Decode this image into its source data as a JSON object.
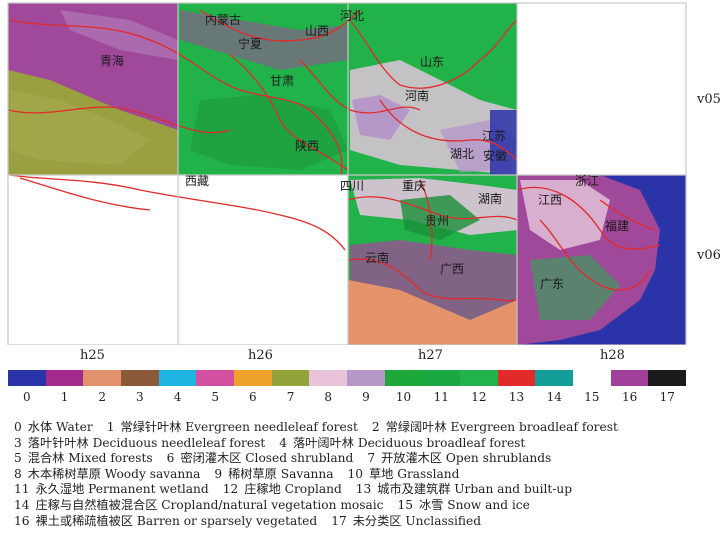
{
  "tiles": {
    "columns": [
      "h25",
      "h26",
      "h27",
      "h28"
    ],
    "rows": [
      "v05",
      "v06"
    ]
  },
  "provinces": [
    "内蒙古",
    "宁夏",
    "山西",
    "河北",
    "山东",
    "青海",
    "甘肃",
    "陕西",
    "河南",
    "江苏",
    "安徽",
    "西藏",
    "四川",
    "重庆",
    "湖北",
    "浙江",
    "湖南",
    "江西",
    "贵州",
    "福建",
    "云南",
    "广西",
    "广东"
  ],
  "classes": [
    {
      "id": "0",
      "zh": "水体",
      "en": "Water",
      "color": "#2b33a8"
    },
    {
      "id": "1",
      "zh": "常绿针叶林",
      "en": "Evergreen needleleaf forest",
      "color": "#a22a8c"
    },
    {
      "id": "2",
      "zh": "常绿阔叶林",
      "en": "Evergreen broadleaf forest",
      "color": "#e2936e"
    },
    {
      "id": "3",
      "zh": "落叶针叶林",
      "en": "Deciduous needleleaf forest",
      "color": "#8c5a3a"
    },
    {
      "id": "4",
      "zh": "落叶阔叶林",
      "en": "Deciduous broadleaf forest",
      "color": "#1fb5e3"
    },
    {
      "id": "5",
      "zh": "混合林",
      "en": "Mixed forests",
      "color": "#d34fa0"
    },
    {
      "id": "6",
      "zh": "密闭灌木区",
      "en": "Closed shrubland",
      "color": "#eda02a"
    },
    {
      "id": "7",
      "zh": "开放灌木区",
      "en": "Open shrublands",
      "color": "#94a23c"
    },
    {
      "id": "8",
      "zh": "木本稀树草原",
      "en": "Woody savanna",
      "color": "#e8c3da"
    },
    {
      "id": "9",
      "zh": "稀树草原",
      "en": "Savanna",
      "color": "#b597c8"
    },
    {
      "id": "10",
      "zh": "草地",
      "en": "Grassland",
      "color": "#1fa83a"
    },
    {
      "id": "11",
      "zh": "永久湿地",
      "en": "Permanent wetland",
      "color": "#1aa844"
    },
    {
      "id": "12",
      "zh": "庄稼地",
      "en": "Cropland",
      "color": "#22b24a"
    },
    {
      "id": "13",
      "zh": "城市及建筑群",
      "en": "Urban and built-up",
      "color": "#e22a2a"
    },
    {
      "id": "14",
      "zh": "庄稼与自然植被混合区",
      "en": "Cropland/natural vegetation mosaic",
      "color": "#139e9a"
    },
    {
      "id": "15",
      "zh": "冰雪",
      "en": "Snow and ice",
      "color": "#ffffff"
    },
    {
      "id": "16",
      "zh": "裸土或稀疏植被区",
      "en": "Barren or sparsely vegetated",
      "color": "#a1409a"
    },
    {
      "id": "17",
      "zh": "未分类区",
      "en": "Unclassified",
      "color": "#1a1a1a"
    }
  ],
  "legend_rows": [
    [
      0,
      1,
      2
    ],
    [
      3,
      4
    ],
    [
      5,
      6,
      7
    ],
    [
      8,
      9,
      10
    ],
    [
      11,
      12,
      13
    ],
    [
      14,
      15
    ],
    [
      16,
      17
    ]
  ]
}
